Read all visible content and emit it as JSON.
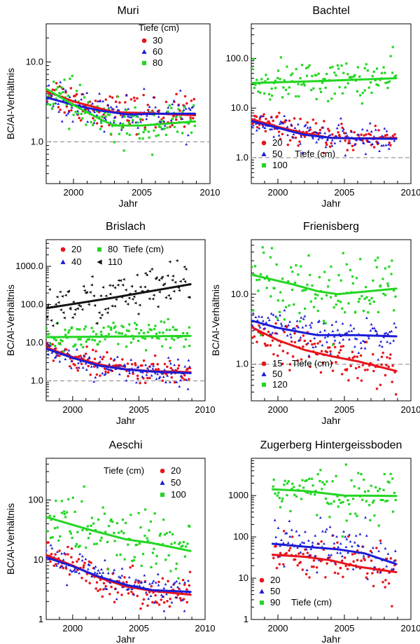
{
  "x_ticks": [
    "2000",
    "2005",
    "2010"
  ],
  "chart_data": [
    {
      "type": "scatter",
      "title": "Muri",
      "xlabel": "Jahr",
      "ylabel": "BC/Al-Verhältnis",
      "xlim": [
        1998.0,
        2010.0
      ],
      "ylim": [
        0.3,
        30
      ],
      "yscale": "log",
      "y_ticks": [
        "1.0",
        "10.0"
      ],
      "reference_line": 1.0,
      "legend": {
        "title": "Tiefe (cm)",
        "placement": "top-right"
      },
      "series": [
        {
          "name": "30",
          "color": "#e8141b",
          "marker": "circle",
          "trend": [
            [
              1998.0,
              4.3
            ],
            [
              2000,
              3.2
            ],
            [
              2002,
              2.6
            ],
            [
              2003,
              2.35
            ],
            [
              2005,
              2.3
            ],
            [
              2008.9,
              2.15
            ]
          ],
          "spread": 0.12
        },
        {
          "name": "60",
          "color": "#1c1cd6",
          "marker": "triangle",
          "trend": [
            [
              1998.0,
              3.6
            ],
            [
              2000,
              2.9
            ],
            [
              2002,
              2.45
            ],
            [
              2004,
              2.2
            ],
            [
              2006,
              2.25
            ],
            [
              2008.9,
              2.25
            ]
          ],
          "spread": 0.11
        },
        {
          "name": "80",
          "color": "#22d622",
          "marker": "square",
          "trend": [
            [
              1998.0,
              4.6
            ],
            [
              2000,
              2.9
            ],
            [
              2002,
              1.9
            ],
            [
              2003,
              1.6
            ],
            [
              2005,
              1.6
            ],
            [
              2008.9,
              1.8
            ]
          ],
          "spread": 0.13
        }
      ]
    },
    {
      "type": "scatter",
      "title": "Bachtel",
      "xlabel": "Jahr",
      "ylabel": "",
      "xlim": [
        1998.0,
        2010.0
      ],
      "ylim": [
        0.3,
        500
      ],
      "yscale": "log",
      "y_ticks": [
        "1.0",
        "10.0",
        "100.0"
      ],
      "reference_line": 1.0,
      "legend": {
        "title": "Tiefe (cm)",
        "placement": "bottom-left"
      },
      "series": [
        {
          "name": "20",
          "color": "#e8141b",
          "marker": "circle",
          "trend": [
            [
              1998.0,
              6.0
            ],
            [
              2000,
              4.2
            ],
            [
              2002,
              3.1
            ],
            [
              2004,
              2.5
            ],
            [
              2006,
              2.45
            ],
            [
              2008.9,
              2.5
            ]
          ],
          "spread": 0.13
        },
        {
          "name": "50",
          "color": "#1c1cd6",
          "marker": "triangle",
          "trend": [
            [
              1998.0,
              5.5
            ],
            [
              2000,
              4.0
            ],
            [
              2002,
              2.9
            ],
            [
              2004,
              2.5
            ],
            [
              2006,
              2.45
            ],
            [
              2008.9,
              2.4
            ]
          ],
          "spread": 0.13
        },
        {
          "name": "100",
          "color": "#22d622",
          "marker": "square",
          "trend": [
            [
              1998.0,
              32
            ],
            [
              2003,
              35
            ],
            [
              2008.9,
              40
            ]
          ],
          "spread": 0.2
        }
      ]
    },
    {
      "type": "scatter",
      "title": "Brislach",
      "xlabel": "Jahr",
      "ylabel": "BC/Al-Verhältnis",
      "xlim": [
        1998.0,
        2010.0
      ],
      "ylim": [
        0.3,
        5000
      ],
      "yscale": "log",
      "y_ticks": [
        "1.0",
        "10.0",
        "100.0",
        "1000.0"
      ],
      "reference_line": 1.0,
      "legend": {
        "title": "Tiefe (cm)",
        "placement": "top"
      },
      "series": [
        {
          "name": "20",
          "color": "#e8141b",
          "marker": "circle",
          "trend": [
            [
              1998.0,
              7.5
            ],
            [
              2000,
              4.2
            ],
            [
              2002,
              2.7
            ],
            [
              2004,
              2.0
            ],
            [
              2006,
              1.8
            ],
            [
              2008.9,
              1.7
            ]
          ],
          "spread": 0.16
        },
        {
          "name": "40",
          "color": "#1c1cd6",
          "marker": "triangle",
          "trend": [
            [
              1998.0,
              7.0
            ],
            [
              2000,
              4.0
            ],
            [
              2002,
              2.5
            ],
            [
              2004,
              2.0
            ],
            [
              2006,
              1.75
            ],
            [
              2008.9,
              1.6
            ]
          ],
          "spread": 0.16
        },
        {
          "name": "80",
          "color": "#22d622",
          "marker": "square",
          "trend": [
            [
              1998.0,
              14
            ],
            [
              2008.9,
              15
            ]
          ],
          "spread": 0.2
        },
        {
          "name": "110",
          "color": "#111111",
          "marker": "arrow",
          "trend": [
            [
              1998.0,
              80
            ],
            [
              2003,
              150
            ],
            [
              2008.9,
              340
            ]
          ],
          "spread": 0.3
        }
      ]
    },
    {
      "type": "scatter",
      "title": "Frienisberg",
      "xlabel": "Jahr",
      "ylabel": "BC/Al-Verhältnis",
      "xlim": [
        1998.0,
        2010.0
      ],
      "ylim": [
        0.3,
        60
      ],
      "yscale": "log",
      "y_ticks": [
        "1.0",
        "10.0"
      ],
      "reference_line": 1.0,
      "legend": {
        "title": "Tiefe (cm)",
        "placement": "bottom-left"
      },
      "series": [
        {
          "name": "15",
          "color": "#e8141b",
          "marker": "circle",
          "trend": [
            [
              1998.0,
              3.4
            ],
            [
              2000,
              2.2
            ],
            [
              2002,
              1.6
            ],
            [
              2004,
              1.3
            ],
            [
              2006,
              1.1
            ],
            [
              2008.9,
              0.8
            ]
          ],
          "spread": 0.14
        },
        {
          "name": "50",
          "color": "#1c1cd6",
          "marker": "triangle",
          "trend": [
            [
              1998.0,
              4.2
            ],
            [
              2000,
              3.3
            ],
            [
              2002,
              2.8
            ],
            [
              2003,
              2.6
            ],
            [
              2006,
              2.6
            ],
            [
              2008.9,
              2.5
            ]
          ],
          "spread": 0.12
        },
        {
          "name": "120",
          "color": "#22d622",
          "marker": "square",
          "trend": [
            [
              1998.0,
              19
            ],
            [
              2001,
              14
            ],
            [
              2003,
              11
            ],
            [
              2004.5,
              10
            ],
            [
              2008.9,
              12
            ]
          ],
          "spread": 0.25
        }
      ]
    },
    {
      "type": "scatter",
      "title": "Aeschi",
      "xlabel": "Jahr",
      "ylabel": "BC/Al-Verhältnis",
      "xlim": [
        1998.0,
        2010.0
      ],
      "ylim": [
        1,
        500
      ],
      "yscale": "log",
      "y_ticks": [
        "1",
        "10",
        "100"
      ],
      "reference_line": null,
      "legend": {
        "title": "Tiefe (cm)",
        "placement": "top-right"
      },
      "series": [
        {
          "name": "20",
          "color": "#e8141b",
          "marker": "circle",
          "trend": [
            [
              1998.0,
              12
            ],
            [
              2000,
              8
            ],
            [
              2002,
              5
            ],
            [
              2004,
              3.6
            ],
            [
              2006,
              3.0
            ],
            [
              2008.9,
              2.6
            ]
          ],
          "spread": 0.14
        },
        {
          "name": "50",
          "color": "#1c1cd6",
          "marker": "triangle",
          "trend": [
            [
              1998.0,
              11
            ],
            [
              2000,
              7.8
            ],
            [
              2002,
              5.2
            ],
            [
              2004,
              3.8
            ],
            [
              2006,
              3.1
            ],
            [
              2008.9,
              2.9
            ]
          ],
          "spread": 0.14
        },
        {
          "name": "100",
          "color": "#22d622",
          "marker": "square",
          "trend": [
            [
              1998.0,
              52
            ],
            [
              2001,
              33
            ],
            [
              2004,
              22
            ],
            [
              2006,
              19
            ],
            [
              2008.9,
              14
            ]
          ],
          "spread": 0.28
        }
      ]
    },
    {
      "type": "scatter",
      "title": "Zugerberg Hintergeissboden",
      "xlabel": "Jahr",
      "ylabel": "",
      "xlim": [
        1998.0,
        2010.0
      ],
      "ylim": [
        1,
        8000
      ],
      "yscale": "log",
      "y_ticks": [
        "1",
        "10",
        "100",
        "1000"
      ],
      "reference_line": null,
      "legend": {
        "title": "Tiefe (cm)",
        "placement": "bottom-left"
      },
      "series": [
        {
          "name": "20",
          "color": "#e8141b",
          "marker": "circle",
          "trend": [
            [
              1999.6,
              37
            ],
            [
              2002,
              33
            ],
            [
              2004,
              27
            ],
            [
              2006,
              19
            ],
            [
              2008.9,
              14
            ]
          ],
          "spread": 0.28
        },
        {
          "name": "50",
          "color": "#1c1cd6",
          "marker": "triangle",
          "trend": [
            [
              1999.6,
              68
            ],
            [
              2002,
              58
            ],
            [
              2004.5,
              50
            ],
            [
              2006.5,
              40
            ],
            [
              2008.9,
              22
            ]
          ],
          "spread": 0.28
        },
        {
          "name": "90",
          "color": "#22d622",
          "marker": "square",
          "trend": [
            [
              1999.6,
              1420
            ],
            [
              2002,
              1300
            ],
            [
              2005,
              1000
            ],
            [
              2008.9,
              980
            ]
          ],
          "spread": 0.3
        }
      ]
    }
  ]
}
